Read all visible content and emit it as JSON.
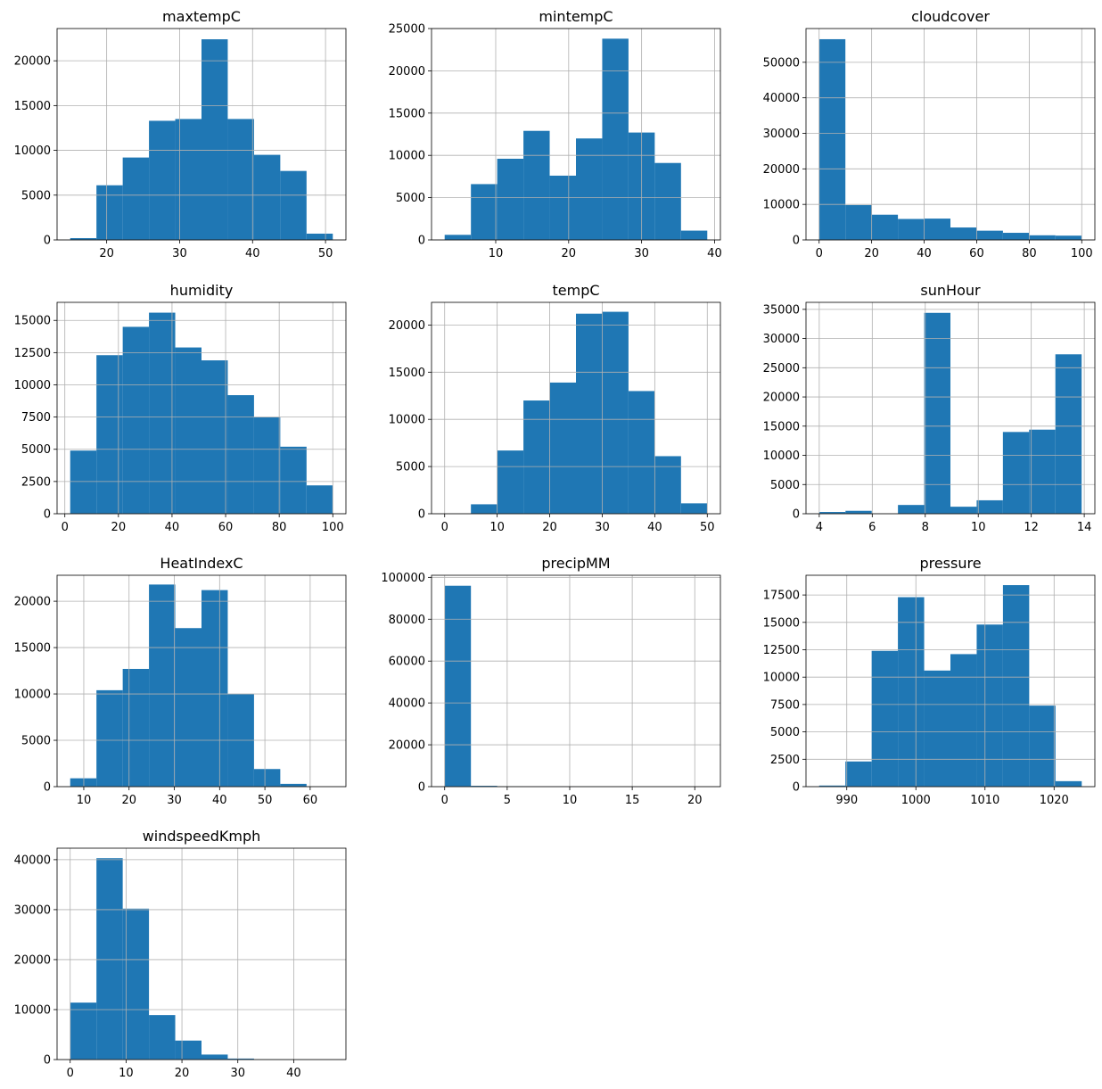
{
  "chart_data": [
    {
      "type": "bar",
      "title": "maxtempC",
      "xlim": [
        13.2,
        52.8
      ],
      "ylim": [
        0,
        23600
      ],
      "xticks": [
        20,
        30,
        40,
        50
      ],
      "yticks": [
        0,
        5000,
        10000,
        15000,
        20000
      ],
      "grid": true,
      "bins": [
        15,
        18.6,
        22.2,
        25.8,
        29.4,
        33.0,
        36.6,
        40.2,
        43.8,
        47.4,
        51
      ],
      "counts": [
        200,
        6100,
        9200,
        13300,
        13500,
        22400,
        13500,
        9500,
        7700,
        700
      ]
    },
    {
      "type": "bar",
      "title": "mintempC",
      "xlim": [
        1.2,
        40.8
      ],
      "ylim": [
        0,
        25000
      ],
      "xticks": [
        10,
        20,
        30,
        40
      ],
      "yticks": [
        0,
        5000,
        10000,
        15000,
        20000,
        25000
      ],
      "grid": true,
      "bins": [
        3,
        6.6,
        10.2,
        13.8,
        17.4,
        21.0,
        24.6,
        28.2,
        31.8,
        35.4,
        39
      ],
      "counts": [
        600,
        6600,
        9600,
        12900,
        7600,
        12000,
        23800,
        12700,
        9100,
        1100
      ]
    },
    {
      "type": "bar",
      "title": "cloudcover",
      "xlim": [
        -5,
        105
      ],
      "ylim": [
        0,
        59500
      ],
      "xticks": [
        0,
        20,
        40,
        60,
        80,
        100
      ],
      "yticks": [
        0,
        10000,
        20000,
        30000,
        40000,
        50000
      ],
      "grid": true,
      "bins": [
        0,
        10,
        20,
        30,
        40,
        50,
        60,
        70,
        80,
        90,
        100
      ],
      "counts": [
        56500,
        9800,
        7100,
        5900,
        6000,
        3500,
        2600,
        2000,
        1300,
        1200
      ]
    },
    {
      "type": "bar",
      "title": "humidity",
      "xlim": [
        -2.9,
        104.9
      ],
      "ylim": [
        0,
        16400
      ],
      "xticks": [
        0,
        20,
        40,
        60,
        80,
        100
      ],
      "yticks": [
        0,
        2500,
        5000,
        7500,
        10000,
        12500,
        15000
      ],
      "grid": true,
      "bins": [
        2,
        11.8,
        21.6,
        31.4,
        41.2,
        51.0,
        60.8,
        70.6,
        80.4,
        90.2,
        100
      ],
      "counts": [
        4900,
        12300,
        14500,
        15600,
        12900,
        11900,
        9200,
        7500,
        5200,
        2200
      ]
    },
    {
      "type": "bar",
      "title": "tempC",
      "xlim": [
        -2.5,
        52.5
      ],
      "ylim": [
        0,
        22400
      ],
      "xticks": [
        0,
        10,
        20,
        30,
        40,
        50
      ],
      "yticks": [
        0,
        5000,
        10000,
        15000,
        20000
      ],
      "grid": true,
      "bins": [
        0,
        5,
        10,
        15,
        20,
        25,
        30,
        35,
        40,
        45,
        50
      ],
      "counts": [
        0,
        1000,
        6700,
        12000,
        13900,
        21200,
        21400,
        13000,
        6100,
        1100
      ]
    },
    {
      "type": "bar",
      "title": "sunHour",
      "xlim": [
        3.5,
        14.4
      ],
      "ylim": [
        0,
        36200
      ],
      "xticks": [
        4,
        6,
        8,
        10,
        12,
        14
      ],
      "yticks": [
        0,
        5000,
        10000,
        15000,
        20000,
        25000,
        30000,
        35000
      ],
      "grid": true,
      "bins": [
        4.0,
        4.99,
        5.98,
        6.97,
        7.96,
        8.95,
        9.94,
        10.93,
        11.92,
        12.91,
        13.9
      ],
      "counts": [
        300,
        500,
        0,
        1500,
        34400,
        1200,
        2300,
        14000,
        14400,
        27300
      ]
    },
    {
      "type": "bar",
      "title": "HeatIndexC",
      "xlim": [
        4.1,
        67.9
      ],
      "ylim": [
        0,
        22800
      ],
      "xticks": [
        10,
        20,
        30,
        40,
        50,
        60
      ],
      "yticks": [
        0,
        5000,
        10000,
        15000,
        20000
      ],
      "grid": true,
      "bins": [
        7,
        12.8,
        18.6,
        24.4,
        30.2,
        36.0,
        41.8,
        47.6,
        53.4,
        59.2,
        65
      ],
      "counts": [
        900,
        10400,
        12700,
        21800,
        17100,
        21200,
        10000,
        1900,
        300,
        0
      ]
    },
    {
      "type": "bar",
      "title": "precipMM",
      "xlim": [
        -1.05,
        22.05
      ],
      "ylim": [
        0,
        101000
      ],
      "xticks": [
        0,
        5,
        10,
        15,
        20
      ],
      "yticks": [
        0,
        20000,
        40000,
        60000,
        80000,
        100000
      ],
      "grid": true,
      "bins": [
        0,
        2.1,
        4.2,
        6.3,
        8.4,
        10.5,
        12.6,
        14.7,
        16.8,
        18.9,
        21
      ],
      "counts": [
        96000,
        400,
        100,
        50,
        30,
        20,
        10,
        10,
        5,
        5
      ]
    },
    {
      "type": "bar",
      "title": "pressure",
      "xlim": [
        984.1,
        1025.9
      ],
      "ylim": [
        0,
        19300
      ],
      "xticks": [
        990,
        1000,
        1010,
        1020
      ],
      "yticks": [
        0,
        2500,
        5000,
        7500,
        10000,
        12500,
        15000,
        17500
      ],
      "grid": true,
      "bins": [
        986,
        989.8,
        993.6,
        997.4,
        1001.2,
        1005.0,
        1008.8,
        1012.6,
        1016.4,
        1020.2,
        1024
      ],
      "counts": [
        100,
        2300,
        12400,
        17300,
        10600,
        12100,
        14800,
        18400,
        7400,
        500
      ]
    },
    {
      "type": "bar",
      "title": "windspeedKmph",
      "xlim": [
        -2.35,
        49.35
      ],
      "ylim": [
        0,
        42300
      ],
      "xticks": [
        0,
        10,
        20,
        30,
        40
      ],
      "yticks": [
        0,
        10000,
        20000,
        30000,
        40000
      ],
      "grid": true,
      "bins": [
        0,
        4.7,
        9.4,
        14.1,
        18.8,
        23.5,
        28.2,
        32.9,
        37.6,
        42.3,
        47
      ],
      "counts": [
        11400,
        40300,
        30200,
        8900,
        3800,
        1000,
        200,
        50,
        10,
        5
      ]
    }
  ],
  "colors": {
    "bar": "#1f77b4",
    "grid": "#b0b0b0",
    "axis": "#000000",
    "background": "#ffffff"
  }
}
